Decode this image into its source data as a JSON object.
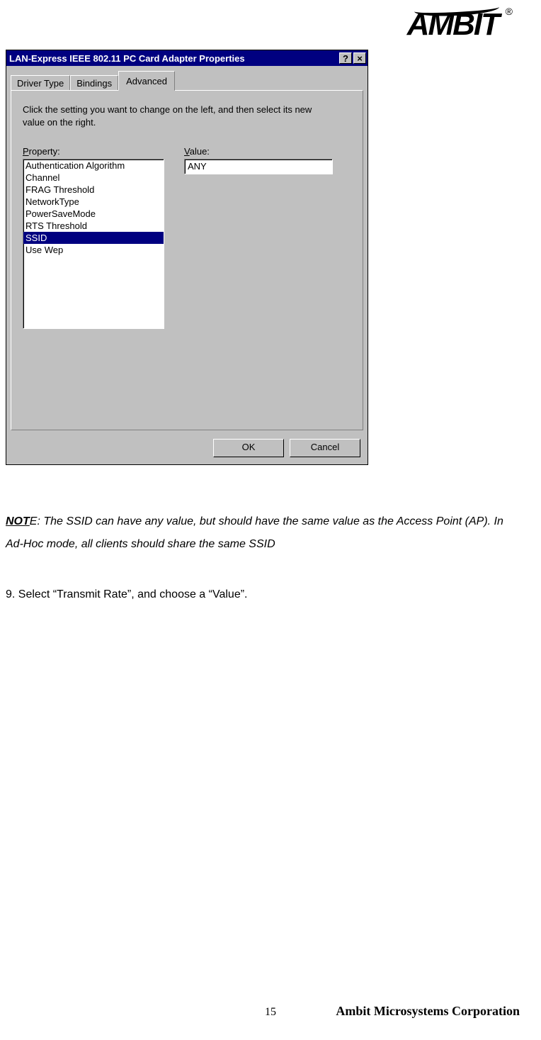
{
  "logo": {
    "text": "AMBIT",
    "registered": "®"
  },
  "dialog": {
    "title": "LAN-Express IEEE 802.11 PC Card Adapter Properties",
    "tabs": [
      {
        "label": "Driver Type",
        "active": false
      },
      {
        "label": "Bindings",
        "active": false
      },
      {
        "label": "Advanced",
        "active": true
      }
    ],
    "instruction": "Click the setting you want to change on the left, and then select its new value on the right.",
    "property_label_underline": "P",
    "property_label_rest": "roperty:",
    "value_label_underline": "V",
    "value_label_rest": "alue:",
    "properties": [
      "Authentication Algorithm",
      "Channel",
      "FRAG Threshold",
      "NetworkType",
      "PowerSaveMode",
      "RTS Threshold",
      "SSID",
      "Use Wep"
    ],
    "selected_index": 6,
    "value_text": "ANY",
    "ok_label": "OK",
    "cancel_label": "Cancel",
    "help_glyph": "?",
    "close_glyph": "×"
  },
  "note": {
    "label": "NOT",
    "label_tail": "E",
    "body": ": The SSID can have any value, but should have the same value as the Access Point (AP). In Ad-Hoc mode, all clients should share the same SSID"
  },
  "step": "9. Select “Transmit Rate”, and choose a “Value”.",
  "page_number": "15",
  "footer_company": "Ambit Microsystems Corporation",
  "colors": {
    "titlebar_bg": "#000080",
    "titlebar_fg": "#ffffff",
    "dialog_bg": "#c0c0c0",
    "selection_bg": "#000080",
    "selection_fg": "#ffffff",
    "page_bg": "#ffffff"
  }
}
